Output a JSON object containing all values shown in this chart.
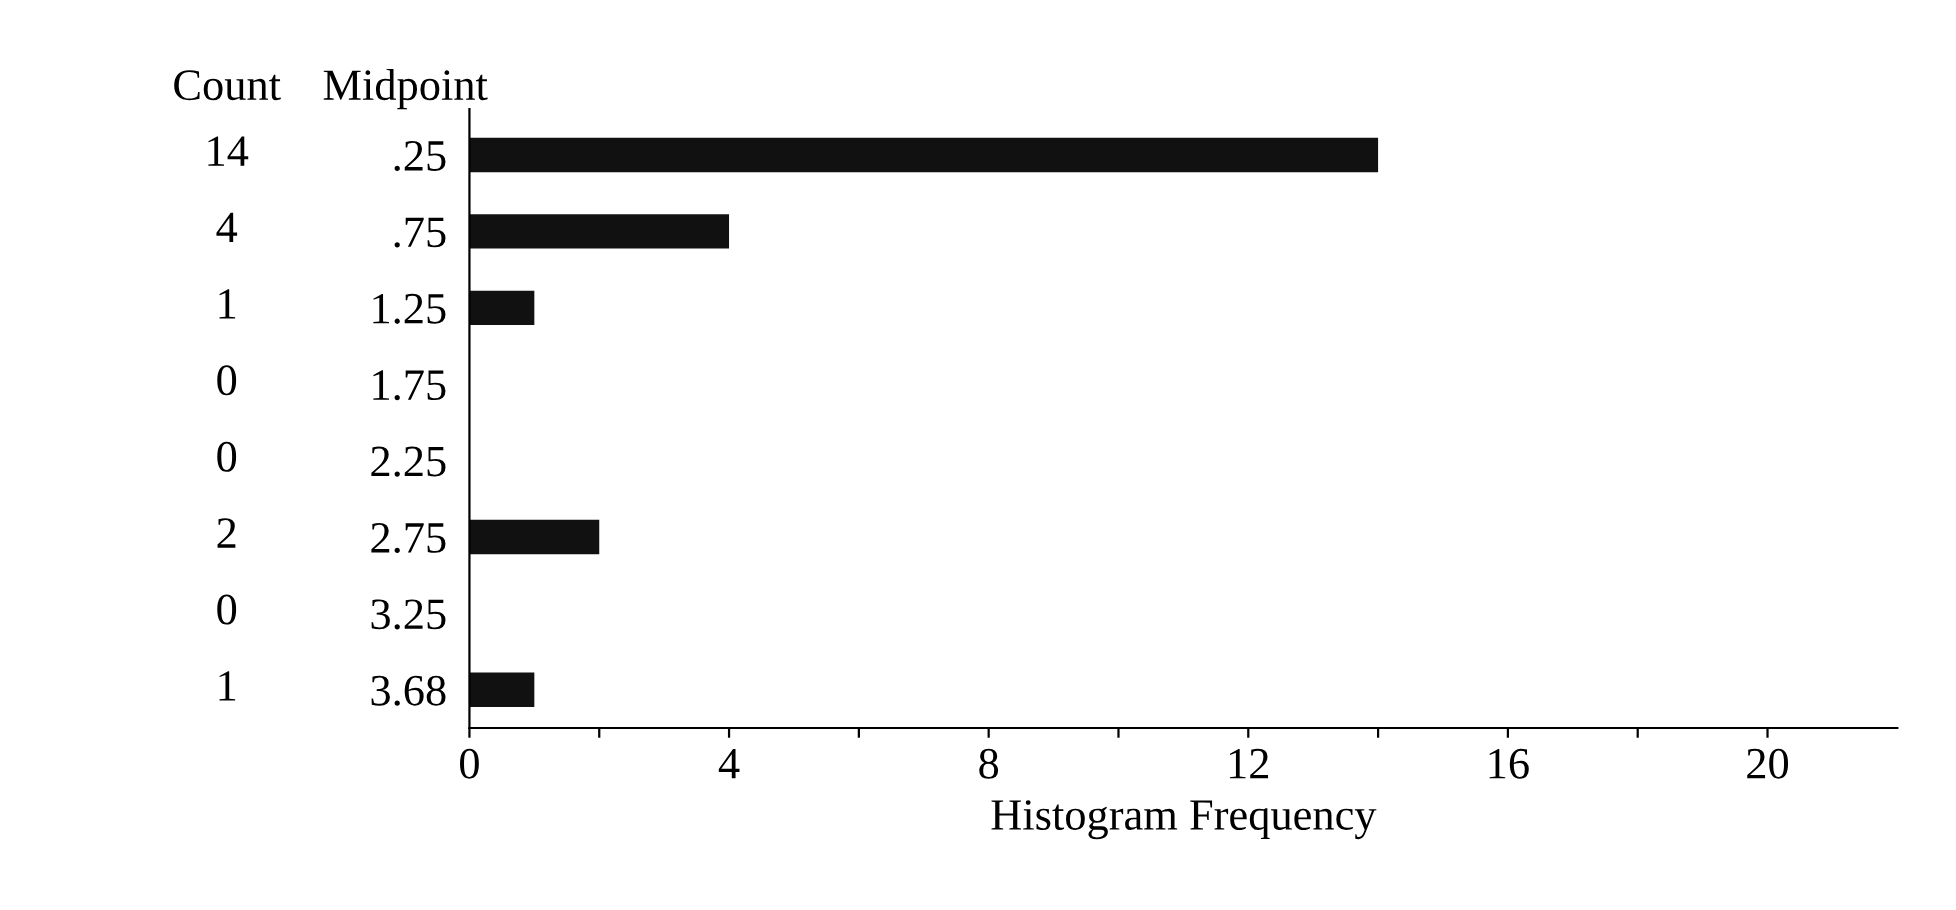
{
  "chart_data": {
    "type": "bar",
    "orientation": "horizontal",
    "ylabel": "Midpoint",
    "xlabel": "Histogram Frequency",
    "categories": [
      ".25",
      ".75",
      "1.25",
      "1.75",
      "2.25",
      "2.75",
      "3.25",
      "3.68"
    ],
    "values": [
      14,
      4,
      1,
      0,
      0,
      2,
      0,
      1
    ],
    "color": "#111111",
    "data_labels": true,
    "annotations": [
      "Count"
    ],
    "xlim": [
      0,
      22
    ],
    "xticks": [
      0,
      {
        "value": 2,
        "label": null
      },
      4,
      {
        "value": 6,
        "label": null
      },
      8,
      {
        "value": 10,
        "label": null
      },
      12,
      {
        "value": 14,
        "label": null
      },
      16,
      {
        "value": 18,
        "label": null
      },
      20
    ],
    "grid": false,
    "legend": false
  }
}
